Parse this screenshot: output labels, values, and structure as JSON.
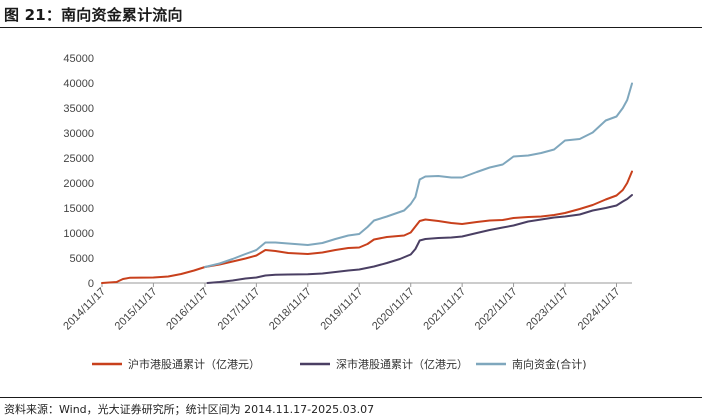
{
  "figure": {
    "title": "图 21：南向资金累计流向",
    "source": "资料来源：Wind，光大证券研究所；统计区间为 2014.11.17-2025.03.07"
  },
  "chart_data": {
    "type": "line",
    "x_ticks": [
      "2014/11/17",
      "2015/11/17",
      "2016/11/17",
      "2017/11/17",
      "2018/11/17",
      "2019/11/17",
      "2020/11/17",
      "2021/11/17",
      "2022/11/17",
      "2023/11/17",
      "2024/11/17"
    ],
    "y_ticks": [
      0,
      5000,
      10000,
      15000,
      20000,
      25000,
      30000,
      35000,
      40000,
      45000
    ],
    "ylim": [
      0,
      45000
    ],
    "xlim": [
      "2014-11-17",
      "2025-03-07"
    ],
    "grid": false,
    "legend_position": "bottom",
    "series": [
      {
        "name": "沪市港股通累计（亿港元）",
        "color": "#c8401c",
        "points": [
          [
            "2014-11-17",
            0
          ],
          [
            "2015-03-01",
            200
          ],
          [
            "2015-04-15",
            800
          ],
          [
            "2015-06-01",
            1050
          ],
          [
            "2015-11-17",
            1100
          ],
          [
            "2016-03-01",
            1300
          ],
          [
            "2016-06-01",
            1800
          ],
          [
            "2016-09-01",
            2500
          ],
          [
            "2016-11-17",
            3200
          ],
          [
            "2017-03-01",
            3700
          ],
          [
            "2017-06-01",
            4300
          ],
          [
            "2017-09-01",
            4900
          ],
          [
            "2017-11-17",
            5500
          ],
          [
            "2018-01-20",
            6600
          ],
          [
            "2018-04-01",
            6400
          ],
          [
            "2018-07-01",
            6000
          ],
          [
            "2018-11-17",
            5800
          ],
          [
            "2019-03-01",
            6100
          ],
          [
            "2019-06-01",
            6600
          ],
          [
            "2019-09-01",
            7000
          ],
          [
            "2019-11-17",
            7100
          ],
          [
            "2020-01-15",
            7800
          ],
          [
            "2020-03-01",
            8700
          ],
          [
            "2020-06-01",
            9200
          ],
          [
            "2020-10-01",
            9500
          ],
          [
            "2020-11-17",
            10100
          ],
          [
            "2021-01-20",
            12400
          ],
          [
            "2021-03-01",
            12700
          ],
          [
            "2021-06-01",
            12400
          ],
          [
            "2021-09-01",
            12000
          ],
          [
            "2021-11-17",
            11800
          ],
          [
            "2022-03-01",
            12200
          ],
          [
            "2022-06-01",
            12500
          ],
          [
            "2022-09-01",
            12600
          ],
          [
            "2022-11-17",
            13000
          ],
          [
            "2023-03-01",
            13200
          ],
          [
            "2023-06-01",
            13300
          ],
          [
            "2023-09-01",
            13600
          ],
          [
            "2023-11-17",
            14000
          ],
          [
            "2024-03-01",
            14800
          ],
          [
            "2024-06-01",
            15600
          ],
          [
            "2024-09-01",
            16700
          ],
          [
            "2024-11-17",
            17500
          ],
          [
            "2025-01-01",
            18600
          ],
          [
            "2025-02-01",
            20000
          ],
          [
            "2025-03-07",
            22300
          ]
        ]
      },
      {
        "name": "深市港股通累计（亿港元）",
        "color": "#4a3f63",
        "points": [
          [
            "2016-12-05",
            0
          ],
          [
            "2017-03-01",
            200
          ],
          [
            "2017-06-01",
            500
          ],
          [
            "2017-09-01",
            900
          ],
          [
            "2017-11-17",
            1100
          ],
          [
            "2018-01-20",
            1500
          ],
          [
            "2018-04-01",
            1650
          ],
          [
            "2018-07-01",
            1700
          ],
          [
            "2018-11-17",
            1750
          ],
          [
            "2019-03-01",
            1900
          ],
          [
            "2019-06-01",
            2200
          ],
          [
            "2019-09-01",
            2500
          ],
          [
            "2019-11-17",
            2700
          ],
          [
            "2020-03-01",
            3300
          ],
          [
            "2020-06-01",
            4000
          ],
          [
            "2020-09-01",
            4800
          ],
          [
            "2020-11-17",
            5700
          ],
          [
            "2020-12-20",
            6800
          ],
          [
            "2021-01-20",
            8500
          ],
          [
            "2021-03-01",
            8800
          ],
          [
            "2021-06-01",
            9000
          ],
          [
            "2021-09-01",
            9100
          ],
          [
            "2021-11-17",
            9300
          ],
          [
            "2022-03-01",
            10000
          ],
          [
            "2022-06-01",
            10600
          ],
          [
            "2022-09-01",
            11100
          ],
          [
            "2022-11-17",
            11500
          ],
          [
            "2023-03-01",
            12300
          ],
          [
            "2023-06-01",
            12700
          ],
          [
            "2023-09-01",
            13100
          ],
          [
            "2023-11-17",
            13300
          ],
          [
            "2024-03-01",
            13700
          ],
          [
            "2024-06-01",
            14500
          ],
          [
            "2024-09-01",
            15000
          ],
          [
            "2024-11-17",
            15500
          ],
          [
            "2025-01-01",
            16300
          ],
          [
            "2025-02-01",
            16800
          ],
          [
            "2025-03-07",
            17600
          ]
        ]
      },
      {
        "name": "南向资金(合计)",
        "color": "#7fa7bd",
        "points": [
          [
            "2016-11-17",
            3200
          ],
          [
            "2017-03-01",
            3900
          ],
          [
            "2017-06-01",
            4800
          ],
          [
            "2017-09-01",
            5800
          ],
          [
            "2017-11-17",
            6600
          ],
          [
            "2018-01-20",
            8100
          ],
          [
            "2018-04-01",
            8100
          ],
          [
            "2018-07-01",
            7900
          ],
          [
            "2018-11-17",
            7600
          ],
          [
            "2019-03-01",
            8000
          ],
          [
            "2019-06-01",
            8800
          ],
          [
            "2019-09-01",
            9500
          ],
          [
            "2019-11-17",
            9800
          ],
          [
            "2020-01-15",
            11200
          ],
          [
            "2020-03-01",
            12500
          ],
          [
            "2020-06-01",
            13300
          ],
          [
            "2020-10-01",
            14500
          ],
          [
            "2020-11-17",
            15800
          ],
          [
            "2020-12-20",
            17200
          ],
          [
            "2021-01-20",
            20700
          ],
          [
            "2021-03-01",
            21300
          ],
          [
            "2021-06-01",
            21400
          ],
          [
            "2021-09-01",
            21100
          ],
          [
            "2021-11-17",
            21100
          ],
          [
            "2022-03-01",
            22200
          ],
          [
            "2022-06-01",
            23100
          ],
          [
            "2022-09-01",
            23700
          ],
          [
            "2022-11-17",
            25300
          ],
          [
            "2023-03-01",
            25500
          ],
          [
            "2023-06-01",
            26000
          ],
          [
            "2023-09-01",
            26700
          ],
          [
            "2023-11-17",
            28500
          ],
          [
            "2024-03-01",
            28800
          ],
          [
            "2024-06-01",
            30100
          ],
          [
            "2024-09-01",
            32500
          ],
          [
            "2024-11-17",
            33300
          ],
          [
            "2025-01-01",
            35000
          ],
          [
            "2025-02-01",
            36600
          ],
          [
            "2025-03-07",
            39900
          ]
        ]
      }
    ]
  }
}
